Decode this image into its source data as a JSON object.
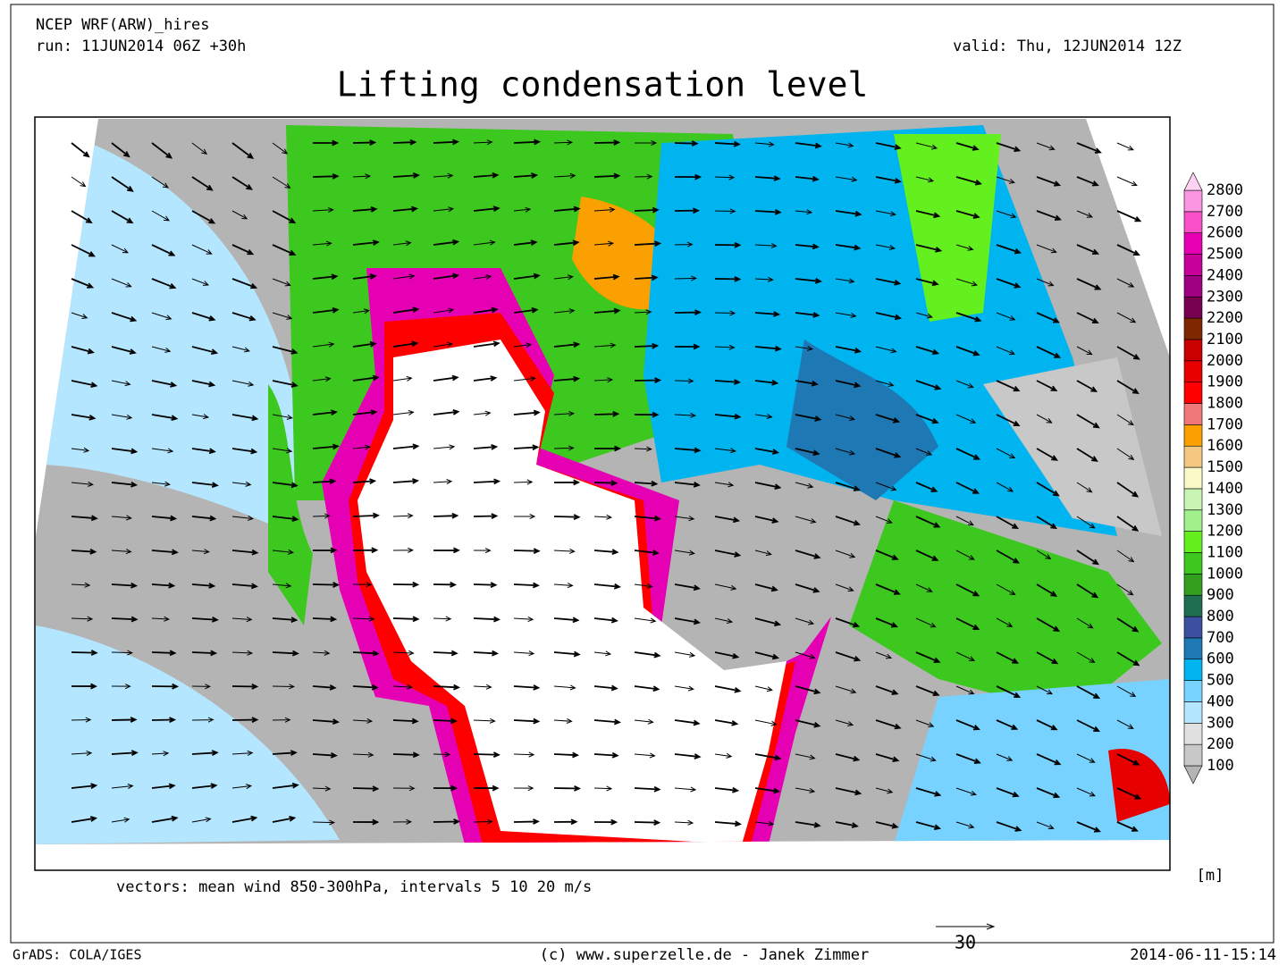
{
  "header": {
    "model": "NCEP WRF(ARW)_hires",
    "run": "run: 11JUN2014 06Z +30h",
    "valid": "valid: Thu, 12JUN2014 12Z",
    "title": "Lifting condensation level"
  },
  "colorbar": {
    "unit": "[m]",
    "levels": [
      100,
      200,
      300,
      400,
      500,
      600,
      700,
      800,
      900,
      1000,
      1100,
      1200,
      1300,
      1400,
      1500,
      1600,
      1700,
      1800,
      1900,
      2000,
      2100,
      2200,
      2300,
      2400,
      2500,
      2600,
      2700,
      2800
    ],
    "colors": [
      "#b4b4b4",
      "#c8c8c8",
      "#e1e1e1",
      "#b4e6ff",
      "#78d2ff",
      "#00b4f0",
      "#1e78b4",
      "#3c50a0",
      "#1e6e50",
      "#32a01e",
      "#3cc81e",
      "#64f01e",
      "#a0f08c",
      "#c8f5b4",
      "#fafac8",
      "#f5c882",
      "#faa000",
      "#f07878",
      "#ff0000",
      "#e60000",
      "#c80000",
      "#7d2800",
      "#780050",
      "#a00082",
      "#c8009b",
      "#e600b4",
      "#fa50c8",
      "#fa96e1",
      "#ffd2f5"
    ]
  },
  "footer": {
    "vectors": "vectors: mean wind 850-300hPa, intervals 5 10 20 m/s",
    "reference": "30",
    "software": "GrADS: COLA/IGES",
    "credit": "(c) www.superzelle.de - Janek Zimmer",
    "timestamp": "2014-06-11-15:14"
  }
}
